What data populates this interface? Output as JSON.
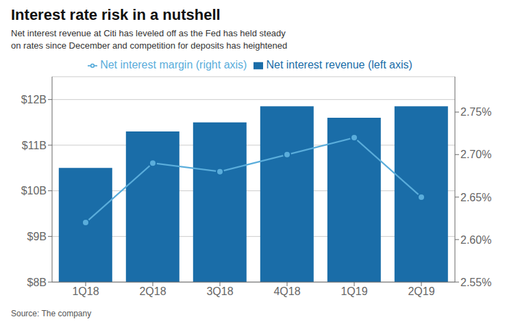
{
  "chart_data": {
    "type": "bar",
    "title": "Interest rate risk in a nutshell",
    "subtitle": "Net interest revenue at Citi has leveled off as the Fed has held steady\non rates since December and competition for deposits has heightened",
    "annotations": [
      "Source: The company"
    ],
    "categories": [
      "1Q18",
      "2Q18",
      "3Q18",
      "4Q18",
      "1Q19",
      "2Q19"
    ],
    "series": [
      {
        "name": "Net interest revenue (left axis)",
        "type": "bar",
        "color": "#1a6da8",
        "values": [
          10.5,
          11.3,
          11.5,
          11.85,
          11.6,
          11.85
        ]
      },
      {
        "name": "Net interest margin (right axis)",
        "type": "line",
        "color": "#5aaddb",
        "marker": "circle",
        "axis": "y2",
        "values": [
          2.62,
          2.69,
          2.68,
          2.7,
          2.72,
          2.65
        ]
      }
    ],
    "ylim": [
      8,
      12.5
    ],
    "yticks": [
      {
        "value": 8,
        "label": "$8B"
      },
      {
        "value": 9,
        "label": "$9B"
      },
      {
        "value": 10,
        "label": "$10B"
      },
      {
        "value": 11,
        "label": "$11B"
      },
      {
        "value": 12,
        "label": "$12B"
      }
    ],
    "y2lim": [
      2.55,
      2.7917
    ],
    "y2ticks": [
      {
        "value": 2.55,
        "label": "2.55%"
      },
      {
        "value": 2.6,
        "label": "2.60%"
      },
      {
        "value": 2.65,
        "label": "2.65%"
      },
      {
        "value": 2.7,
        "label": "2.70%"
      },
      {
        "value": 2.75,
        "label": "2.75%"
      }
    ],
    "grid": true,
    "legend": "top"
  }
}
